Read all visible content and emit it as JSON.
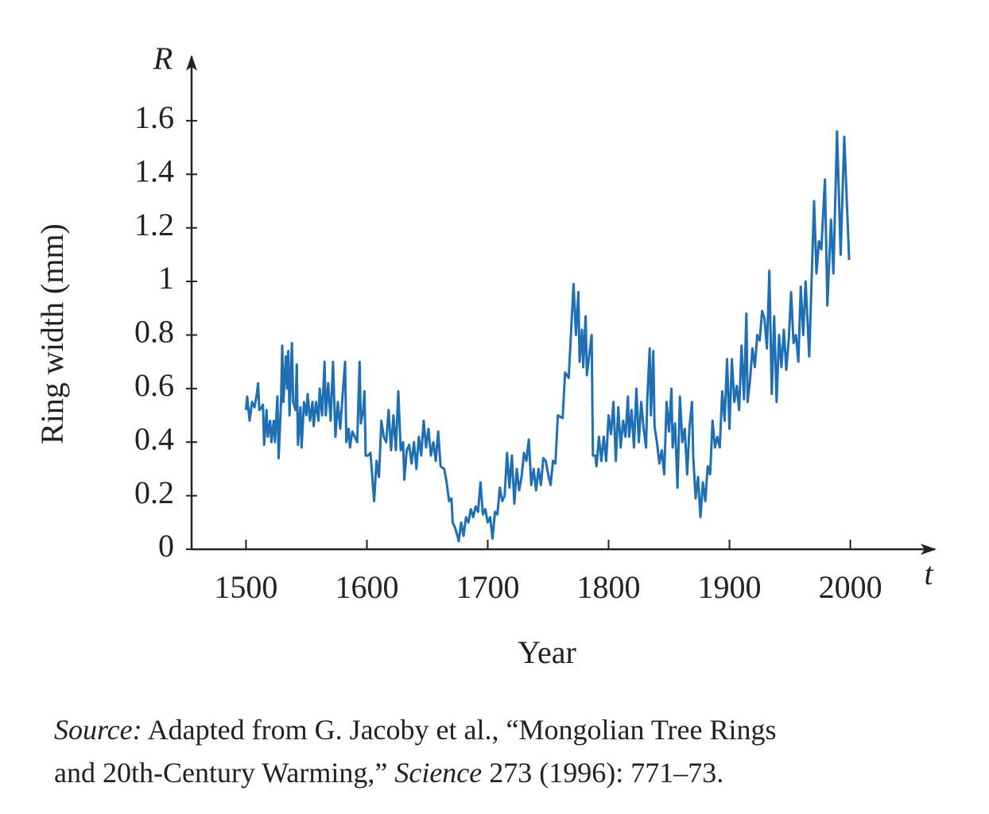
{
  "chart_data": {
    "type": "line",
    "y_label": "Ring width (mm)",
    "x_label": "Year",
    "y_var": "R",
    "x_var": "t",
    "xlim": [
      1455,
      2070
    ],
    "ylim": [
      0,
      1.84
    ],
    "xticks": [
      1500,
      1600,
      1700,
      1800,
      1900,
      2000
    ],
    "yticks": [
      0,
      0.2,
      0.4,
      0.6,
      0.8,
      1,
      1.2,
      1.4,
      1.6
    ],
    "series": [
      {
        "color": "#1f6fb4",
        "x": [
          1500,
          1501,
          1503,
          1505,
          1507,
          1509,
          1510,
          1511,
          1513,
          1514,
          1515,
          1517,
          1518,
          1520,
          1521,
          1523,
          1524,
          1526,
          1527,
          1529,
          1530,
          1531,
          1533,
          1534,
          1535,
          1536,
          1538,
          1539,
          1541,
          1542,
          1543,
          1545,
          1546,
          1548,
          1550,
          1551,
          1553,
          1555,
          1556,
          1558,
          1560,
          1561,
          1563,
          1565,
          1566,
          1568,
          1570,
          1572,
          1574,
          1576,
          1578,
          1580,
          1582,
          1583,
          1585,
          1586,
          1588,
          1590,
          1592,
          1594,
          1595,
          1597,
          1598,
          1599,
          1601,
          1603,
          1604,
          1606,
          1608,
          1610,
          1612,
          1614,
          1616,
          1618,
          1620,
          1622,
          1624,
          1626,
          1628,
          1630,
          1631,
          1633,
          1635,
          1637,
          1639,
          1641,
          1643,
          1645,
          1647,
          1649,
          1651,
          1653,
          1655,
          1657,
          1659,
          1661,
          1664,
          1666,
          1668,
          1670,
          1671,
          1673,
          1675,
          1676,
          1678,
          1680,
          1682,
          1684,
          1686,
          1688,
          1690,
          1692,
          1694,
          1696,
          1698,
          1700,
          1702,
          1704,
          1706,
          1708,
          1710,
          1712,
          1714,
          1716,
          1718,
          1720,
          1722,
          1724,
          1726,
          1728,
          1730,
          1732,
          1734,
          1736,
          1738,
          1740,
          1742,
          1744,
          1746,
          1748,
          1750,
          1752,
          1754,
          1756,
          1758,
          1762,
          1764,
          1767,
          1771,
          1773,
          1775,
          1776,
          1778,
          1779,
          1781,
          1782,
          1786,
          1787,
          1789,
          1790,
          1792,
          1794,
          1796,
          1798,
          1800,
          1802,
          1804,
          1806,
          1808,
          1810,
          1812,
          1814,
          1816,
          1817,
          1819,
          1821,
          1823,
          1825,
          1827,
          1829,
          1831,
          1832,
          1834,
          1835,
          1837,
          1838,
          1840,
          1842,
          1844,
          1846,
          1848,
          1850,
          1852,
          1853,
          1855,
          1857,
          1859,
          1861,
          1863,
          1865,
          1867,
          1869,
          1870,
          1872,
          1874,
          1876,
          1878,
          1880,
          1882,
          1884,
          1886,
          1888,
          1890,
          1892,
          1894,
          1896,
          1898,
          1900,
          1902,
          1904,
          1906,
          1908,
          1910,
          1912,
          1914,
          1915,
          1917,
          1919,
          1921,
          1923,
          1925,
          1927,
          1929,
          1931,
          1933,
          1935,
          1937,
          1939,
          1941,
          1943,
          1945,
          1947,
          1949,
          1951,
          1953,
          1955,
          1957,
          1959,
          1961,
          1963,
          1966,
          1970,
          1972,
          1974,
          1976,
          1979,
          1981,
          1984,
          1986,
          1989,
          1992,
          1995,
          1999
        ],
        "values": [
          0.52,
          0.57,
          0.48,
          0.55,
          0.53,
          0.58,
          0.62,
          0.52,
          0.53,
          0.54,
          0.39,
          0.52,
          0.42,
          0.48,
          0.4,
          0.48,
          0.4,
          0.57,
          0.34,
          0.55,
          0.76,
          0.55,
          0.72,
          0.6,
          0.74,
          0.5,
          0.77,
          0.55,
          0.52,
          0.69,
          0.39,
          0.53,
          0.38,
          0.55,
          0.5,
          0.58,
          0.48,
          0.55,
          0.46,
          0.55,
          0.48,
          0.6,
          0.5,
          0.7,
          0.5,
          0.62,
          0.48,
          0.7,
          0.42,
          0.55,
          0.45,
          0.58,
          0.7,
          0.4,
          0.45,
          0.38,
          0.44,
          0.42,
          0.4,
          0.7,
          0.47,
          0.52,
          0.59,
          0.35,
          0.35,
          0.36,
          0.3,
          0.18,
          0.33,
          0.27,
          0.48,
          0.42,
          0.4,
          0.52,
          0.37,
          0.5,
          0.37,
          0.59,
          0.37,
          0.4,
          0.26,
          0.37,
          0.39,
          0.32,
          0.4,
          0.3,
          0.42,
          0.35,
          0.48,
          0.38,
          0.45,
          0.35,
          0.4,
          0.33,
          0.44,
          0.31,
          0.3,
          0.25,
          0.18,
          0.19,
          0.1,
          0.08,
          0.05,
          0.03,
          0.1,
          0.05,
          0.12,
          0.1,
          0.15,
          0.12,
          0.16,
          0.14,
          0.25,
          0.13,
          0.15,
          0.1,
          0.12,
          0.04,
          0.14,
          0.13,
          0.23,
          0.18,
          0.2,
          0.36,
          0.23,
          0.35,
          0.17,
          0.3,
          0.22,
          0.27,
          0.36,
          0.33,
          0.41,
          0.24,
          0.3,
          0.22,
          0.3,
          0.24,
          0.34,
          0.33,
          0.28,
          0.24,
          0.33,
          0.32,
          0.5,
          0.49,
          0.66,
          0.64,
          0.99,
          0.8,
          0.96,
          0.7,
          0.82,
          0.68,
          0.87,
          0.65,
          0.8,
          0.35,
          0.35,
          0.31,
          0.42,
          0.33,
          0.42,
          0.33,
          0.5,
          0.43,
          0.55,
          0.33,
          0.53,
          0.38,
          0.48,
          0.42,
          0.57,
          0.42,
          0.52,
          0.38,
          0.6,
          0.4,
          0.55,
          0.45,
          0.38,
          0.56,
          0.75,
          0.5,
          0.74,
          0.46,
          0.4,
          0.32,
          0.37,
          0.28,
          0.55,
          0.44,
          0.6,
          0.38,
          0.47,
          0.23,
          0.57,
          0.4,
          0.45,
          0.28,
          0.46,
          0.55,
          0.35,
          0.19,
          0.27,
          0.12,
          0.25,
          0.18,
          0.31,
          0.28,
          0.48,
          0.38,
          0.42,
          0.38,
          0.59,
          0.48,
          0.71,
          0.45,
          0.71,
          0.55,
          0.61,
          0.52,
          0.76,
          0.56,
          0.88,
          0.55,
          0.63,
          0.75,
          0.68,
          0.8,
          0.78,
          0.89,
          0.86,
          0.75,
          1.04,
          0.58,
          0.87,
          0.55,
          0.8,
          0.68,
          0.82,
          0.67,
          0.78,
          0.96,
          0.77,
          0.8,
          0.7,
          0.98,
          0.8,
          1.0,
          0.72,
          1.3,
          1.03,
          1.15,
          1.12,
          1.38,
          0.91,
          1.23,
          1.03,
          1.56,
          1.1,
          1.54,
          1.08
        ]
      }
    ],
    "source": [
      [
        {
          "text": "Source:",
          "italic": true
        },
        {
          "text": " Adapted from G. Jacoby et al., “Mongolian Tree Rings"
        }
      ],
      [
        {
          "text": "and 20th-Century Warming,” "
        },
        {
          "text": "Science",
          "italic": true
        },
        {
          "text": " 273 (1996): 771–73."
        }
      ]
    ]
  }
}
